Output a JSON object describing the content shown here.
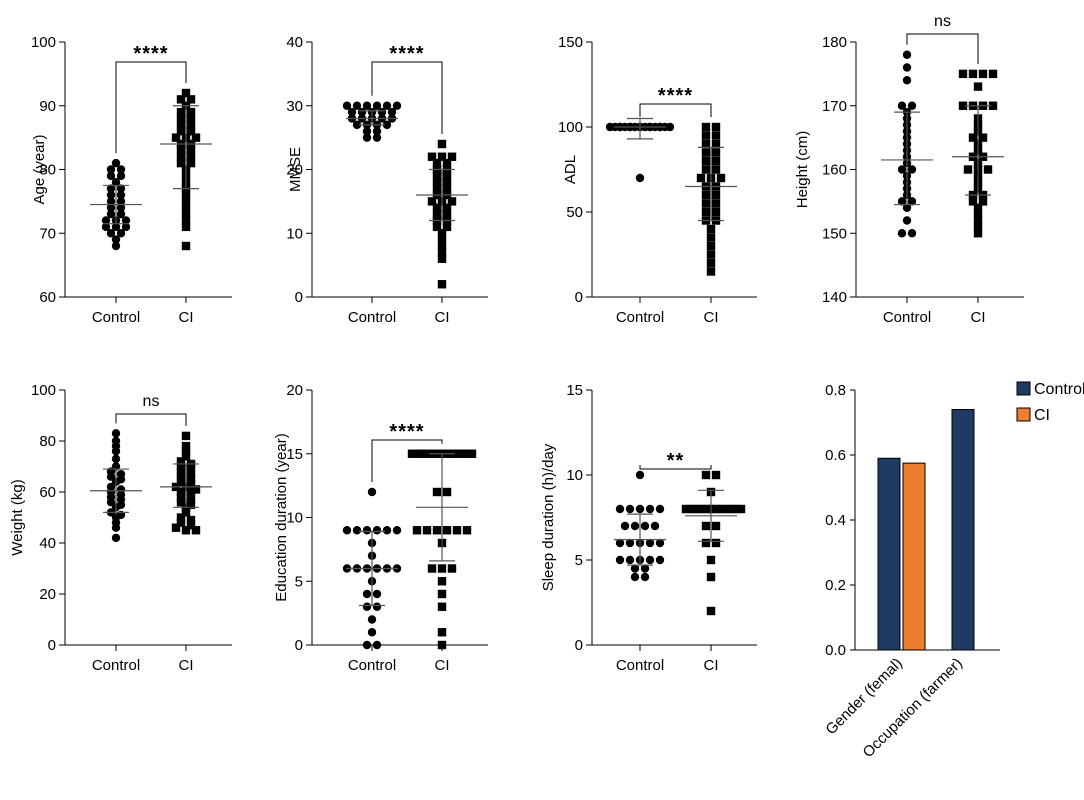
{
  "colors": {
    "control": "#1f3b63",
    "ci": "#ed7d31",
    "marker": "#000000"
  },
  "chart_data": [
    {
      "id": "age",
      "type": "scatter",
      "ylabel": "Age (year)",
      "ylim": [
        60,
        100
      ],
      "yticks": [
        60,
        70,
        80,
        90,
        100
      ],
      "categories": [
        "Control",
        "CI"
      ],
      "significance": "****",
      "groups": [
        {
          "name": "Control",
          "marker": "circle",
          "mean": 74.5,
          "sd_low": 71.5,
          "sd_high": 77.5,
          "values": [
            81,
            80,
            80,
            79,
            79,
            78,
            77,
            77,
            76,
            76,
            75,
            75,
            74,
            74,
            73,
            73,
            72,
            72,
            72,
            71,
            71,
            71,
            70,
            70,
            69,
            68
          ]
        },
        {
          "name": "CI",
          "marker": "square",
          "mean": 84,
          "sd_low": 77,
          "sd_high": 90,
          "values": [
            92,
            91,
            91,
            90,
            89,
            89,
            88,
            88,
            87,
            87,
            86,
            86,
            85,
            85,
            85,
            84,
            84,
            83,
            83,
            82,
            82,
            81,
            81,
            80,
            79,
            78,
            77,
            76,
            75,
            74,
            73,
            72,
            71,
            68
          ]
        }
      ]
    },
    {
      "id": "mmse",
      "type": "scatter",
      "ylabel": "MMSE",
      "ylim": [
        0,
        40
      ],
      "yticks": [
        0,
        10,
        20,
        30,
        40
      ],
      "categories": [
        "Control",
        "CI"
      ],
      "significance": "****",
      "groups": [
        {
          "name": "Control",
          "marker": "circle",
          "mean": 28,
          "sd_low": 27,
          "sd_high": 29.2,
          "values": [
            30,
            30,
            30,
            30,
            30,
            30,
            29,
            29,
            29,
            29,
            29,
            28,
            28,
            28,
            28,
            28,
            27,
            27,
            27,
            27,
            26,
            26,
            25,
            25
          ]
        },
        {
          "name": "CI",
          "marker": "square",
          "mean": 16,
          "sd_low": 12,
          "sd_high": 20,
          "values": [
            24,
            22,
            22,
            22,
            21,
            21,
            20,
            20,
            19,
            19,
            18,
            18,
            17,
            17,
            16,
            16,
            15,
            15,
            15,
            14,
            14,
            13,
            13,
            12,
            12,
            11,
            11,
            10,
            9,
            8,
            7,
            6,
            2
          ]
        }
      ]
    },
    {
      "id": "adl",
      "type": "scatter",
      "ylabel": "ADL",
      "ylim": [
        0,
        150
      ],
      "yticks": [
        0,
        50,
        100,
        150
      ],
      "categories": [
        "Control",
        "CI"
      ],
      "significance": "****",
      "groups": [
        {
          "name": "Control",
          "marker": "circle",
          "mean": 100,
          "sd_low": 93,
          "sd_high": 105,
          "values": [
            100,
            100,
            100,
            100,
            100,
            100,
            100,
            100,
            100,
            100,
            100,
            100,
            100,
            100,
            100,
            100,
            100,
            100,
            70
          ]
        },
        {
          "name": "CI",
          "marker": "square",
          "mean": 65,
          "sd_low": 45,
          "sd_high": 88,
          "values": [
            100,
            100,
            95,
            95,
            90,
            90,
            85,
            85,
            80,
            80,
            75,
            75,
            70,
            70,
            70,
            65,
            65,
            60,
            60,
            55,
            55,
            50,
            50,
            45,
            45,
            40,
            35,
            30,
            25,
            20,
            15
          ]
        }
      ]
    },
    {
      "id": "height",
      "type": "scatter",
      "ylabel": "Height (cm)",
      "ylim": [
        140,
        180
      ],
      "yticks": [
        140,
        150,
        160,
        170,
        180
      ],
      "categories": [
        "Control",
        "CI"
      ],
      "significance": "ns",
      "groups": [
        {
          "name": "Control",
          "marker": "circle",
          "mean": 161.5,
          "sd_low": 154.5,
          "sd_high": 169,
          "values": [
            178,
            176,
            174,
            170,
            170,
            169,
            168,
            167,
            166,
            165,
            164,
            163,
            162,
            161,
            160,
            160,
            159,
            158,
            157,
            156,
            155,
            155,
            154,
            152,
            150,
            150
          ]
        },
        {
          "name": "CI",
          "marker": "square",
          "mean": 162,
          "sd_low": 156,
          "sd_high": 170,
          "values": [
            175,
            175,
            175,
            175,
            173,
            170,
            170,
            170,
            170,
            168,
            167,
            166,
            165,
            165,
            164,
            163,
            162,
            162,
            161,
            160,
            160,
            160,
            159,
            158,
            157,
            156,
            156,
            155,
            155,
            154,
            153,
            152,
            151,
            150
          ]
        }
      ]
    },
    {
      "id": "weight",
      "type": "scatter",
      "ylabel": "Weight (kg)",
      "ylim": [
        0,
        100
      ],
      "yticks": [
        0,
        20,
        40,
        60,
        80,
        100
      ],
      "categories": [
        "Control",
        "CI"
      ],
      "significance": "ns",
      "groups": [
        {
          "name": "Control",
          "marker": "circle",
          "mean": 60.5,
          "sd_low": 52,
          "sd_high": 69,
          "values": [
            83,
            80,
            78,
            76,
            73,
            70,
            68,
            67,
            66,
            65,
            64,
            62,
            61,
            60,
            59,
            58,
            57,
            56,
            55,
            54,
            52,
            51,
            50,
            48,
            46,
            42
          ]
        },
        {
          "name": "CI",
          "marker": "square",
          "mean": 62,
          "sd_low": 54,
          "sd_high": 71,
          "values": [
            82,
            78,
            76,
            74,
            72,
            71,
            70,
            70,
            68,
            67,
            66,
            65,
            64,
            63,
            62,
            62,
            61,
            60,
            60,
            58,
            57,
            56,
            55,
            54,
            52,
            50,
            49,
            48,
            47,
            46,
            45,
            45
          ]
        }
      ]
    },
    {
      "id": "education",
      "type": "scatter",
      "ylabel": "Education duration (year)",
      "ylim": [
        0,
        20
      ],
      "yticks": [
        0,
        5,
        10,
        15,
        20
      ],
      "categories": [
        "Control",
        "CI"
      ],
      "significance": "****",
      "groups": [
        {
          "name": "Control",
          "marker": "circle",
          "mean": 6,
          "sd_low": 3.1,
          "sd_high": 8.9,
          "values": [
            12,
            9,
            9,
            9,
            9,
            9,
            9,
            8,
            7,
            6,
            6,
            6,
            6,
            6,
            6,
            5,
            4,
            4,
            3,
            3,
            2,
            1,
            0,
            0
          ]
        },
        {
          "name": "CI",
          "marker": "square",
          "mean": 10.8,
          "sd_low": 6.6,
          "sd_high": 15,
          "values": [
            15,
            15,
            15,
            15,
            15,
            15,
            15,
            15,
            15,
            15,
            15,
            15,
            15,
            15,
            12,
            12,
            9,
            9,
            9,
            9,
            9,
            9,
            8,
            6,
            6,
            6,
            5,
            4,
            3,
            1,
            0
          ]
        }
      ]
    },
    {
      "id": "sleep",
      "type": "scatter",
      "ylabel": "Sleep duration (h)/day",
      "ylim": [
        0,
        15
      ],
      "yticks": [
        0,
        5,
        10,
        15
      ],
      "categories": [
        "Control",
        "CI"
      ],
      "significance": "**",
      "groups": [
        {
          "name": "Control",
          "marker": "circle",
          "mean": 6.2,
          "sd_low": 4.7,
          "sd_high": 7.7,
          "values": [
            10,
            8,
            8,
            8,
            8,
            8,
            7,
            7,
            7,
            7,
            6,
            6,
            6,
            6,
            6,
            5,
            5,
            5,
            5,
            5,
            4.5,
            4.5,
            4,
            4
          ]
        },
        {
          "name": "CI",
          "marker": "square",
          "mean": 7.6,
          "sd_low": 6.1,
          "sd_high": 9.1,
          "values": [
            10,
            10,
            9,
            8,
            8,
            8,
            8,
            8,
            8,
            8,
            8,
            8,
            8,
            8,
            8,
            7,
            7,
            6,
            6,
            5,
            4,
            2
          ]
        }
      ]
    },
    {
      "id": "categorical",
      "type": "bar",
      "ylim": [
        0,
        0.8
      ],
      "yticks": [
        "0.0",
        "0.2",
        "0.4",
        "0.6",
        "0.8"
      ],
      "categories": [
        "Gender (femal)",
        "Occupation  (farmer)"
      ],
      "series": [
        {
          "name": "Control",
          "values": [
            0.59,
            0.74
          ]
        },
        {
          "name": "CI",
          "values": [
            0.575,
            null
          ]
        }
      ],
      "legend": "top-right"
    }
  ]
}
